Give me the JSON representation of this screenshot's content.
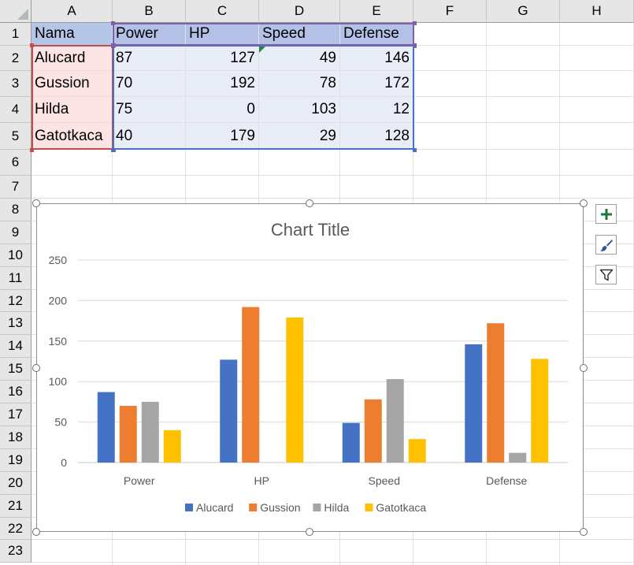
{
  "columns": [
    "A",
    "B",
    "C",
    "D",
    "E",
    "F",
    "G",
    "H"
  ],
  "rows": [
    "1",
    "2",
    "3",
    "4",
    "5",
    "6",
    "7",
    "8",
    "9",
    "10",
    "11",
    "12",
    "13",
    "14",
    "15",
    "16",
    "17",
    "18",
    "19",
    "20",
    "21",
    "22",
    "23"
  ],
  "table": {
    "headers": [
      "Nama",
      "Power",
      "HP",
      "Speed",
      "Defense"
    ],
    "records": [
      {
        "name": "Alucard",
        "values": [
          "87",
          "127",
          "49",
          "146"
        ]
      },
      {
        "name": "Gussion",
        "values": [
          "70",
          "192",
          "78",
          "172"
        ]
      },
      {
        "name": "Hilda",
        "values": [
          "75",
          "0",
          "103",
          "12"
        ]
      },
      {
        "name": "Gatotkaca",
        "values": [
          "40",
          "179",
          "29",
          "128"
        ]
      }
    ]
  },
  "colors": {
    "name_fill": "#fce4e4",
    "header_fill": "#b4c1e6",
    "data_fill": "#e8edf8",
    "name_border": "#c0504d",
    "data_border": "#4472c4",
    "header_border": "#7f60a8"
  },
  "chart_data": {
    "type": "bar",
    "title": "Chart Title",
    "categories": [
      "Power",
      "HP",
      "Speed",
      "Defense"
    ],
    "series": [
      {
        "name": "Alucard",
        "color": "#4472c4",
        "values": [
          87,
          127,
          49,
          146
        ]
      },
      {
        "name": "Gussion",
        "color": "#ed7d31",
        "values": [
          70,
          192,
          78,
          172
        ]
      },
      {
        "name": "Hilda",
        "color": "#a5a5a5",
        "values": [
          75,
          0,
          103,
          12
        ]
      },
      {
        "name": "Gatotkaca",
        "color": "#ffc000",
        "values": [
          40,
          179,
          29,
          128
        ]
      }
    ],
    "ylim": [
      0,
      250
    ],
    "yticks": [
      0,
      50,
      100,
      150,
      200,
      250
    ],
    "grid": true,
    "legend": "bottom"
  },
  "chart_tools": [
    "plus-icon",
    "brush-icon",
    "filter-icon"
  ]
}
